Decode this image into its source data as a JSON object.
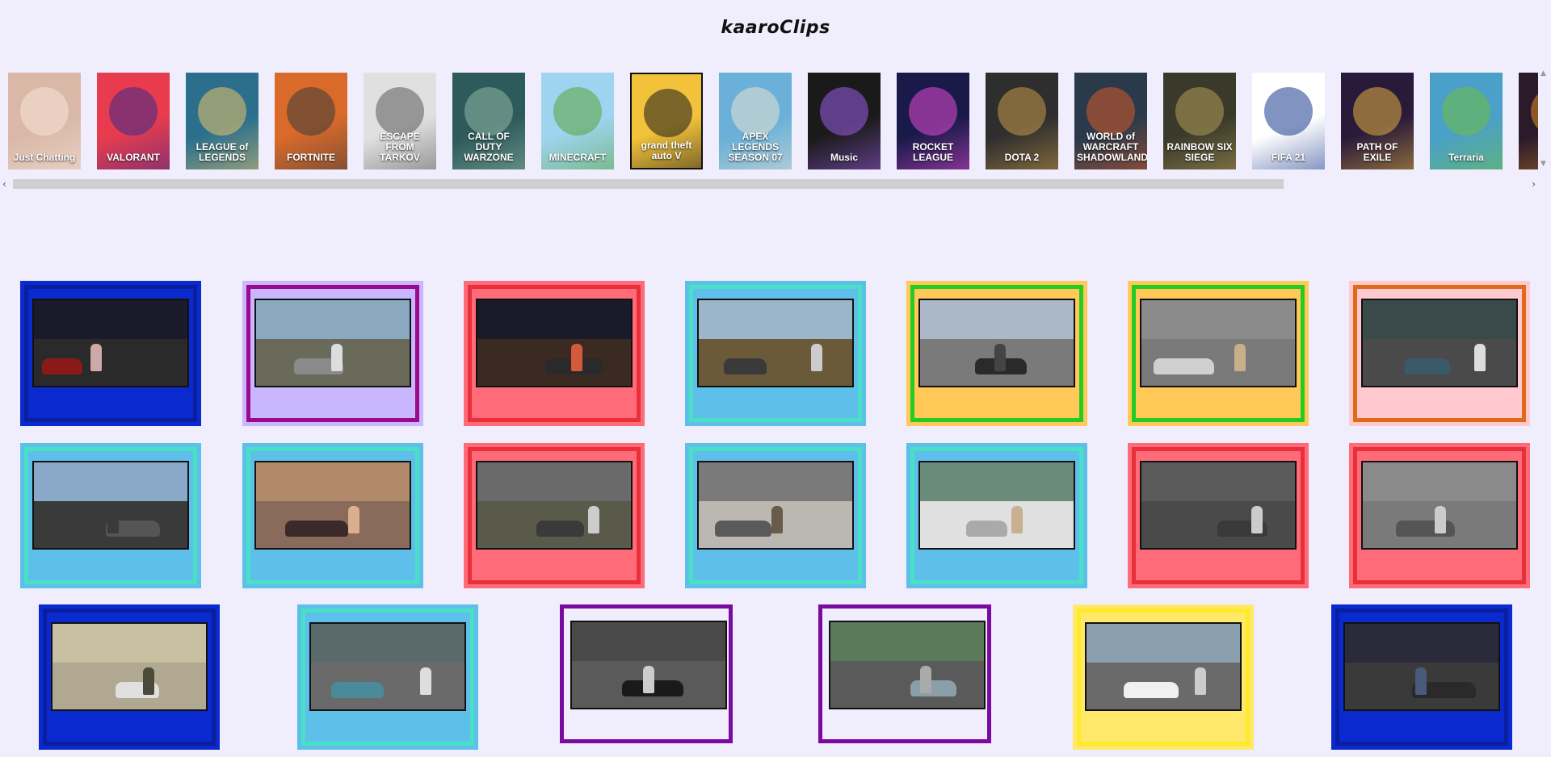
{
  "site": {
    "title": "kaaroClips"
  },
  "games": [
    {
      "label": "Just Chatting",
      "bg": "#d9b8a8",
      "accent": "#f6e3d6"
    },
    {
      "label": "VALORANT",
      "bg": "#e83b4d",
      "accent": "#3b2c8c"
    },
    {
      "label": "LEAGUE of LEGENDS",
      "bg": "#2b6f8c",
      "accent": "#e9c56a"
    },
    {
      "label": "FORTNITE",
      "bg": "#d96a2a",
      "accent": "#3a3a3a"
    },
    {
      "label": "ESCAPE FROM TARKOV",
      "bg": "#e0e0e0",
      "accent": "#5a5a5a"
    },
    {
      "label": "CALL OF DUTY WARZONE",
      "bg": "#2d5a5a",
      "accent": "#8fb6a6"
    },
    {
      "label": "MINECRAFT",
      "bg": "#9fd4f0",
      "accent": "#5aa33a"
    },
    {
      "label": "grand theft auto V",
      "bg": "#f2c23a",
      "accent": "#1a1a1a"
    },
    {
      "label": "APEX LEGENDS SEASON 07",
      "bg": "#6ab0d8",
      "accent": "#e7e1d0"
    },
    {
      "label": "Music",
      "bg": "#1a1a1a",
      "accent": "#9d5ce6"
    },
    {
      "label": "ROCKET LEAGUE",
      "bg": "#1a1a4a",
      "accent": "#e34ad3"
    },
    {
      "label": "DOTA 2",
      "bg": "#2e2e2e",
      "accent": "#c79a4a"
    },
    {
      "label": "WORLD of WARCRAFT SHADOWLANDS",
      "bg": "#2a3a4a",
      "accent": "#d35a2a"
    },
    {
      "label": "RAINBOW SIX SIEGE",
      "bg": "#3a3a2a",
      "accent": "#b09a5a"
    },
    {
      "label": "FIFA 21",
      "bg": "#ffffff",
      "accent": "#1a3a8c"
    },
    {
      "label": "PATH OF EXILE",
      "bg": "#2a1a3a",
      "accent": "#e0b040"
    },
    {
      "label": "Terraria",
      "bg": "#4aa0c8",
      "accent": "#70c040"
    },
    {
      "label": "",
      "bg": "#2a1a2a",
      "accent": "#e08a20"
    }
  ],
  "clips": [
    {
      "outer": "#0a2ad0",
      "inner": "#0a1fa0",
      "sky": "#1a1a2a",
      "ground": "#2a2a2a",
      "fig": "#caa",
      "veh": "#8a1a1a"
    },
    {
      "outer": "#c9b6ff",
      "inner": "#9a0a8a",
      "sky": "#8aa8c0",
      "ground": "#6a6a5a",
      "fig": "#ddd",
      "veh": "#8a8a8a"
    },
    {
      "outer": "#ff6b78",
      "inner": "#e8303a",
      "sky": "#1a1a2a",
      "ground": "#3a2a22",
      "fig": "#d35a3a",
      "veh": "#2a2a2a"
    },
    {
      "outer": "#5ec0ea",
      "inner": "#4ae0c6",
      "sky": "#9ab6c8",
      "ground": "#6a5a3a",
      "fig": "#ccc",
      "veh": "#3a3a3a"
    },
    {
      "outer": "#ffc857",
      "inner": "#22cc22",
      "sky": "#aab8c8",
      "ground": "#7a7a7a",
      "fig": "#444",
      "veh": "#2a2a2a"
    },
    {
      "outer": "#ffc857",
      "inner": "#22cc22",
      "sky": "#8a8a8a",
      "ground": "#7a7a7a",
      "fig": "#c8b08a",
      "veh": "#d0d0d0"
    },
    {
      "outer": "#ffc9cf",
      "inner": "#e06a1a",
      "sky": "#3a4a4a",
      "ground": "#4a4a4a",
      "fig": "#ddd",
      "veh": "#3a5a6a"
    },
    {
      "outer": "#5ec0ea",
      "inner": "#4ae0c6",
      "sky": "#8aa8c8",
      "ground": "#3a3a3a",
      "fig": "#3a3a3a",
      "veh": "#555"
    },
    {
      "outer": "#5ec0ea",
      "inner": "#4ae0c6",
      "sky": "#b08a6a",
      "ground": "#8a6a5a",
      "fig": "#d8b090",
      "veh": "#3a2a2a"
    },
    {
      "outer": "#ff6b78",
      "inner": "#e8303a",
      "sky": "#6a6a6a",
      "ground": "#5a5a4a",
      "fig": "#ccc",
      "veh": "#3a3a3a"
    },
    {
      "outer": "#5ec0ea",
      "inner": "#4ae0c6",
      "sky": "#7a7a7a",
      "ground": "#bab8b0",
      "fig": "#6a5a4a",
      "veh": "#5a5a5a"
    },
    {
      "outer": "#5ec0ea",
      "inner": "#4ae0c6",
      "sky": "#6a8a7a",
      "ground": "#e0e0e0",
      "fig": "#c8b090",
      "veh": "#aaa"
    },
    {
      "outer": "#ff6b78",
      "inner": "#e8303a",
      "sky": "#5a5a5a",
      "ground": "#4a4a4a",
      "fig": "#ccc",
      "veh": "#3a3a3a"
    },
    {
      "outer": "#ff6b78",
      "inner": "#e8303a",
      "sky": "#8a8a8a",
      "ground": "#7a7a7a",
      "fig": "#ccc",
      "veh": "#555"
    },
    {
      "outer": "#0a2ad0",
      "inner": "#0a1fa0",
      "sky": "#c8c0a0",
      "ground": "#b0a890",
      "fig": "#4a4a3a",
      "veh": "#e0e0e0"
    },
    {
      "outer": "#5ec0ea",
      "inner": "#4ae0c6",
      "sky": "#5a6a6a",
      "ground": "#6a6a6a",
      "fig": "#ddd",
      "veh": "#4a8a9a"
    },
    {
      "outer": "#f0eefc",
      "inner": "#7a0aa0",
      "sky": "#4a4a4a",
      "ground": "#5a5a5a",
      "fig": "#ccc",
      "veh": "#1a1a1a"
    },
    {
      "outer": "#f0eefc",
      "inner": "#7a0aa0",
      "sky": "#5a7a5a",
      "ground": "#5a5a5a",
      "fig": "#aaa",
      "veh": "#8aa0a8"
    },
    {
      "outer": "#ffe86a",
      "inner": "#ffea2a",
      "sky": "#8aa0b0",
      "ground": "#6a6a6a",
      "fig": "#ccc",
      "veh": "#f0f0f0"
    },
    {
      "outer": "#0a2ad0",
      "inner": "#0a1fa0",
      "sky": "#2a2a3a",
      "ground": "#3a3a3a",
      "fig": "#4a5a7a",
      "veh": "#2a2a2a"
    }
  ]
}
